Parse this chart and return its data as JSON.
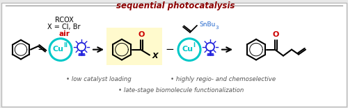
{
  "title": "sequential photocatalysis",
  "title_color": "#8B0000",
  "title_fontsize": 8.5,
  "bg_color": "#e8e8e8",
  "highlight_color": "#FFFACD",
  "bullet_points": [
    "• low catalyst loading",
    "• highly regio- and chemoselective",
    "• late-stage biomolecule functionalization"
  ],
  "bullet_fontsize": 6.2,
  "bullet_color": "#555555",
  "rcox_line1": "RCOX",
  "rcox_line2": "X = Cl, Br",
  "air_text": "air",
  "air_color": "#CC0000",
  "cu_circle_color": "#00C8C8",
  "light_color": "#2020DD",
  "o_color": "#CC0000",
  "sn_color": "#2266CC",
  "x_text": "X",
  "snbu3_text": "SnBu3"
}
